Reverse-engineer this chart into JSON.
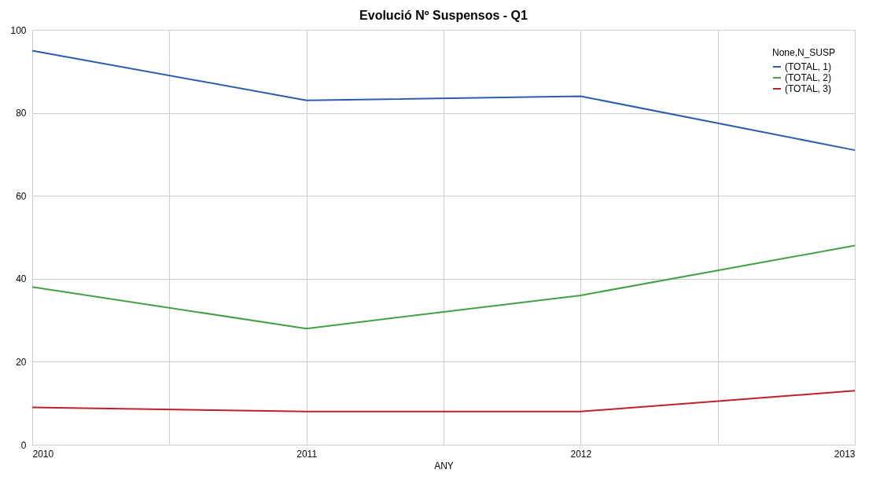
{
  "chart_data": {
    "type": "line",
    "title": "Evolució Nº Suspensos - Q1",
    "xlabel": "ANY",
    "legend_title": "None,N_SUSP",
    "x": [
      2010,
      2011,
      2012,
      2013
    ],
    "series": [
      {
        "name": "(TOTAL, 1)",
        "color": "#2a5ea8",
        "values": [
          95,
          83,
          84,
          71
        ]
      },
      {
        "name": "(TOTAL, 2)",
        "color": "#44a044",
        "values": [
          38,
          28,
          36,
          48
        ]
      },
      {
        "name": "(TOTAL, 3)",
        "color": "#c0202a",
        "values": [
          9,
          8,
          8,
          13
        ]
      }
    ],
    "xlim": [
      2010,
      2013
    ],
    "xticks": [
      2010,
      {
        "value": 2010.5,
        "label": null
      },
      2011,
      {
        "value": 2011.5,
        "label": null
      },
      2012,
      {
        "value": 2012.5,
        "label": null
      },
      2013
    ],
    "ylim": [
      0,
      100
    ],
    "yticks": [
      0,
      20,
      40,
      60,
      80,
      100
    ],
    "grid": true,
    "legend": "top right",
    "marker": "none",
    "line_style": "solid"
  }
}
